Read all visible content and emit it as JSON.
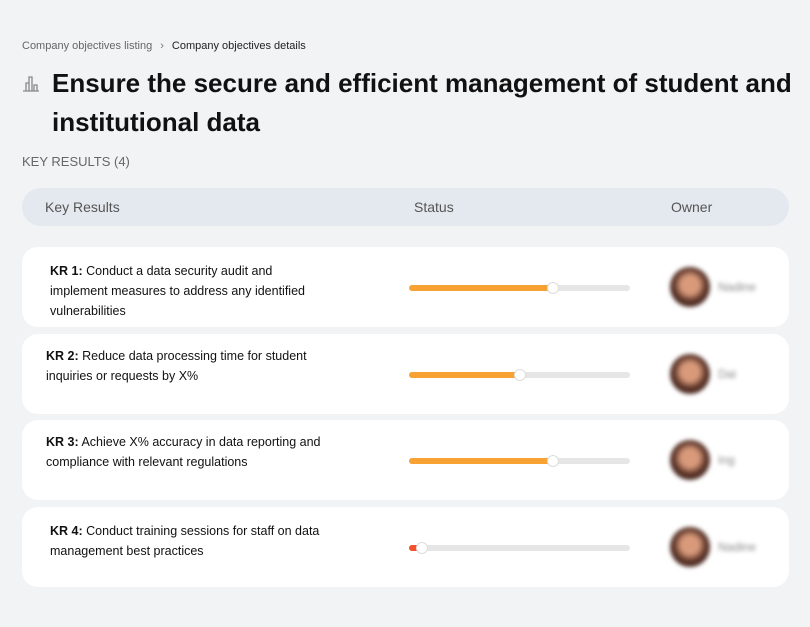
{
  "breadcrumb": {
    "parent": "Company objectives listing",
    "separator": "›",
    "current": "Company objectives details"
  },
  "page": {
    "icon": "building-chart-icon",
    "title": "Ensure the secure and efficient management of student and institutional data",
    "key_results_label": "KEY RESULTS (4)"
  },
  "table": {
    "headers": {
      "key_results": "Key Results",
      "status": "Status",
      "owner": "Owner"
    },
    "rows": [
      {
        "id": "KR 1:",
        "text": "Conduct a data security audit and implement measures to address any identified vulnerabilities",
        "progress": 65,
        "color": "#f7a233",
        "owner": "Nadine"
      },
      {
        "id": "KR 2:",
        "text": "Reduce data processing time for student inquiries or requests by X%",
        "progress": 50,
        "color": "#f7a233",
        "owner": "Dai"
      },
      {
        "id": "KR 3:",
        "text": "Achieve X% accuracy in data reporting and compliance with relevant regulations",
        "progress": 65,
        "color": "#f7a233",
        "owner": "Ing"
      },
      {
        "id": "KR 4:",
        "text": "Conduct training sessions for staff on data management best practices",
        "progress": 6,
        "color": "#f4522d",
        "owner": "Nadine"
      }
    ]
  }
}
